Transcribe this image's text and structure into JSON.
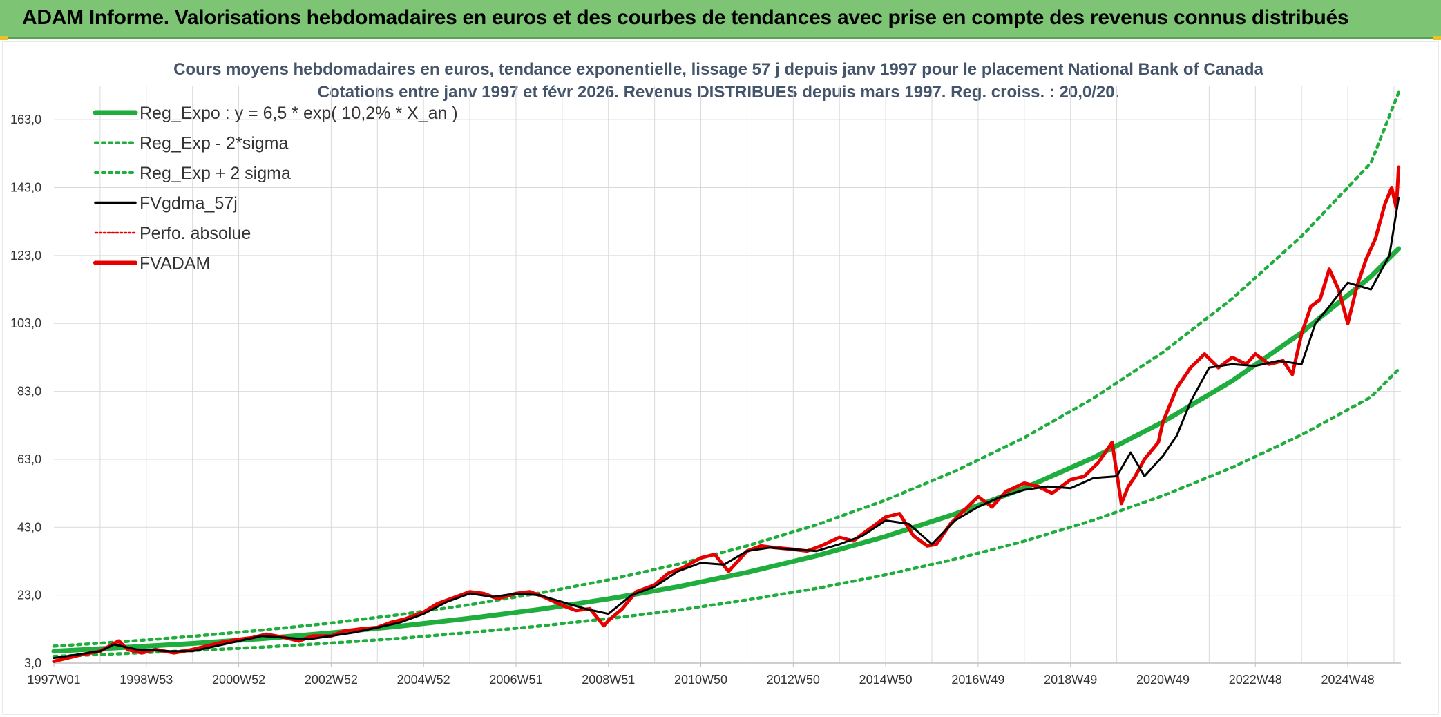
{
  "banner": {
    "title": "ADAM Informe. Valorisations hebdomadaires en euros et des courbes de tendances avec prise en compte des revenus connus distribués"
  },
  "colors": {
    "banner_bg": "#7dc574",
    "regression": "#1fae3e",
    "band": "#1fae3e",
    "smoothed": "#000000",
    "perf": "#e60000",
    "price": "#e60000",
    "grid": "#d9d9d9"
  },
  "chart_data": {
    "type": "line",
    "title": "Cours moyens hebdomadaires en euros, tendance exponentielle, lissage 57 j depuis janv 1997 pour le placement National Bank of Canada",
    "subtitle": "Cotations entre janv 1997 et févr 2026. Revenus DISTRIBUES depuis mars 1997. Reg. croiss. : 20,0/20.",
    "xlabel": "",
    "ylabel": "",
    "ylim": [
      3,
      173
    ],
    "xlim": [
      1997.0,
      2026.15
    ],
    "y_ticks": [
      "3,0",
      "23,0",
      "43,0",
      "63,0",
      "83,0",
      "103,0",
      "123,0",
      "143,0",
      "163,0"
    ],
    "y_tick_values": [
      3,
      23,
      43,
      63,
      83,
      103,
      123,
      143,
      163
    ],
    "x_ticks": [
      "1997W01",
      "1998W53",
      "2000W52",
      "2002W52",
      "2004W52",
      "2006W51",
      "2008W51",
      "2010W50",
      "2012W50",
      "2014W50",
      "2016W49",
      "2018W49",
      "2020W49",
      "2022W48",
      "2024W48"
    ],
    "x_tick_values": [
      1997.0,
      1999.0,
      2001.0,
      2003.0,
      2005.0,
      2007.0,
      2009.0,
      2011.0,
      2013.0,
      2015.0,
      2017.0,
      2019.0,
      2021.0,
      2023.0,
      2025.0
    ],
    "grid": true,
    "legend_position": "top-left",
    "series": [
      {
        "name": "Reg_Expo : y = 6,5 * exp( 10,2% *  X_an )",
        "style": "solid-thick",
        "color": "#1fae3e",
        "x": [
          1997.0,
          1998.5,
          2000.0,
          2001.5,
          2003.0,
          2004.5,
          2006.0,
          2007.5,
          2009.0,
          2010.5,
          2012.0,
          2013.5,
          2015.0,
          2016.5,
          2018.0,
          2019.5,
          2021.0,
          2022.5,
          2024.0,
          2025.5,
          2026.1
        ],
        "y": [
          6.5,
          7.6,
          8.8,
          10.2,
          11.9,
          13.9,
          16.2,
          18.8,
          21.9,
          25.5,
          29.7,
          34.6,
          40.3,
          46.9,
          54.5,
          63.5,
          74.0,
          86.1,
          100.3,
          116.8,
          125.0
        ]
      },
      {
        "name": "Reg_Exp - 2*sigma",
        "style": "dotted",
        "color": "#1fae3e",
        "x": [
          1997.0,
          1998.5,
          2000.0,
          2001.5,
          2003.0,
          2004.5,
          2006.0,
          2007.5,
          2009.0,
          2010.5,
          2012.0,
          2013.5,
          2015.0,
          2016.5,
          2018.0,
          2019.5,
          2021.0,
          2022.5,
          2024.0,
          2025.5,
          2026.1
        ],
        "y": [
          5.0,
          5.8,
          6.7,
          7.7,
          8.9,
          10.3,
          12.0,
          13.9,
          16.1,
          18.6,
          21.6,
          25.0,
          29.0,
          33.6,
          38.9,
          45.1,
          52.3,
          60.6,
          70.2,
          81.3,
          89.5
        ]
      },
      {
        "name": "Reg_Exp + 2 sigma",
        "style": "dotted",
        "color": "#1fae3e",
        "x": [
          1997.0,
          1998.5,
          2000.0,
          2001.5,
          2003.0,
          2004.5,
          2006.0,
          2007.5,
          2009.0,
          2010.5,
          2012.0,
          2013.5,
          2015.0,
          2016.5,
          2018.0,
          2019.5,
          2021.0,
          2022.5,
          2024.0,
          2025.5,
          2026.1
        ],
        "y": [
          8.0,
          9.3,
          10.9,
          12.7,
          14.8,
          17.3,
          20.2,
          23.6,
          27.5,
          32.1,
          37.5,
          43.7,
          51.0,
          59.5,
          69.4,
          81.0,
          94.5,
          110.3,
          128.7,
          150.2,
          171.0
        ]
      },
      {
        "name": "FVgdma_57j",
        "style": "solid",
        "color": "#000000",
        "x": [
          1997.0,
          1997.5,
          1998.0,
          1998.3,
          1998.8,
          1999.5,
          2000.0,
          2000.5,
          2001.0,
          2001.5,
          2002.0,
          2002.5,
          2003.0,
          2003.5,
          2004.0,
          2004.5,
          2005.0,
          2005.5,
          2006.0,
          2006.5,
          2007.0,
          2007.5,
          2008.0,
          2008.5,
          2009.0,
          2009.5,
          2010.0,
          2010.5,
          2011.0,
          2011.5,
          2012.0,
          2012.5,
          2013.0,
          2013.5,
          2014.0,
          2014.5,
          2015.0,
          2015.5,
          2016.0,
          2016.5,
          2017.0,
          2017.5,
          2018.0,
          2018.5,
          2019.0,
          2019.5,
          2020.0,
          2020.3,
          2020.6,
          2021.0,
          2021.3,
          2021.6,
          2022.0,
          2022.5,
          2023.0,
          2023.5,
          2024.0,
          2024.3,
          2024.6,
          2025.0,
          2025.5,
          2025.9,
          2026.1
        ],
        "y": [
          4.5,
          5.5,
          6.5,
          8.5,
          7.0,
          6.5,
          6.5,
          8.0,
          9.5,
          11.0,
          10.5,
          10.0,
          11.0,
          12.0,
          13.5,
          15.0,
          17.5,
          21.0,
          23.5,
          22.5,
          23.5,
          23.0,
          21.0,
          19.0,
          17.5,
          23.0,
          25.5,
          30.0,
          32.5,
          32.0,
          36.0,
          37.0,
          36.5,
          36.0,
          38.0,
          40.5,
          45.0,
          44.0,
          38.0,
          45.0,
          49.0,
          52.0,
          54.0,
          55.0,
          54.5,
          57.5,
          58.0,
          65.0,
          58.0,
          64.0,
          70.0,
          80.0,
          90.0,
          91.0,
          90.5,
          92.0,
          91.0,
          103.0,
          108.0,
          115.0,
          113.0,
          123.0,
          140.0
        ]
      },
      {
        "name": "Perfo. absolue",
        "style": "dotted-thin",
        "color": "#e60000",
        "x": [],
        "y": []
      },
      {
        "name": "FVADAM",
        "style": "solid-thick",
        "color": "#e60000",
        "x": [
          1997.0,
          1997.3,
          1997.6,
          1998.0,
          1998.2,
          1998.4,
          1998.6,
          1998.9,
          1999.2,
          1999.6,
          2000.0,
          2000.3,
          2000.6,
          2001.0,
          2001.3,
          2001.6,
          2002.0,
          2002.3,
          2002.6,
          2003.0,
          2003.3,
          2003.6,
          2004.0,
          2004.3,
          2004.6,
          2005.0,
          2005.3,
          2005.6,
          2006.0,
          2006.3,
          2006.6,
          2007.0,
          2007.3,
          2007.6,
          2008.0,
          2008.3,
          2008.6,
          2008.9,
          2009.0,
          2009.3,
          2009.6,
          2010.0,
          2010.3,
          2010.6,
          2011.0,
          2011.3,
          2011.6,
          2012.0,
          2012.3,
          2012.6,
          2013.0,
          2013.3,
          2013.6,
          2014.0,
          2014.3,
          2014.6,
          2015.0,
          2015.3,
          2015.6,
          2015.9,
          2016.1,
          2016.4,
          2016.7,
          2017.0,
          2017.3,
          2017.6,
          2018.0,
          2018.3,
          2018.6,
          2019.0,
          2019.3,
          2019.6,
          2019.9,
          2020.1,
          2020.25,
          2020.4,
          2020.6,
          2020.9,
          2021.0,
          2021.3,
          2021.6,
          2021.9,
          2022.2,
          2022.5,
          2022.8,
          2023.0,
          2023.3,
          2023.6,
          2023.8,
          2024.0,
          2024.2,
          2024.4,
          2024.6,
          2024.8,
          2025.0,
          2025.2,
          2025.4,
          2025.6,
          2025.8,
          2025.95,
          2026.05,
          2026.1
        ],
        "y": [
          3.5,
          4.5,
          5.5,
          6.5,
          8.0,
          9.5,
          7.0,
          6.0,
          7.0,
          6.0,
          7.0,
          8.0,
          9.0,
          10.0,
          10.5,
          11.5,
          10.5,
          9.5,
          11.0,
          11.0,
          12.5,
          13.0,
          13.5,
          15.0,
          16.0,
          18.0,
          20.5,
          22.0,
          24.0,
          23.5,
          22.0,
          23.5,
          24.0,
          22.5,
          20.0,
          18.5,
          19.0,
          14.0,
          15.5,
          19.0,
          24.0,
          26.0,
          29.5,
          31.0,
          34.0,
          35.0,
          30.0,
          36.0,
          37.5,
          37.0,
          36.5,
          36.0,
          37.5,
          40.0,
          39.0,
          42.0,
          46.0,
          47.0,
          40.5,
          37.5,
          38.0,
          44.0,
          48.0,
          52.0,
          49.0,
          53.5,
          56.0,
          55.0,
          53.0,
          57.0,
          58.0,
          62.0,
          68.0,
          50.0,
          55.0,
          58.0,
          63.0,
          68.0,
          74.0,
          84.0,
          90.0,
          94.0,
          90.0,
          93.0,
          91.0,
          94.0,
          91.0,
          92.0,
          88.0,
          100.0,
          108.0,
          110.0,
          119.0,
          113.0,
          103.0,
          114.0,
          122.0,
          128.0,
          138.0,
          143.0,
          137.0,
          149.0
        ]
      }
    ]
  },
  "legend": [
    {
      "label": "Reg_Expo : y = 6,5 * exp( 10,2% *  X_an )",
      "swatch": "thick-green"
    },
    {
      "label": "Reg_Exp - 2*sigma",
      "swatch": "dotted-green"
    },
    {
      "label": "Reg_Exp + 2 sigma",
      "swatch": "dotted-green"
    },
    {
      "label": "FVgdma_57j",
      "swatch": "black"
    },
    {
      "label": "Perfo. absolue",
      "swatch": "dotted-red"
    },
    {
      "label": "FVADAM",
      "swatch": "thick-red"
    }
  ]
}
